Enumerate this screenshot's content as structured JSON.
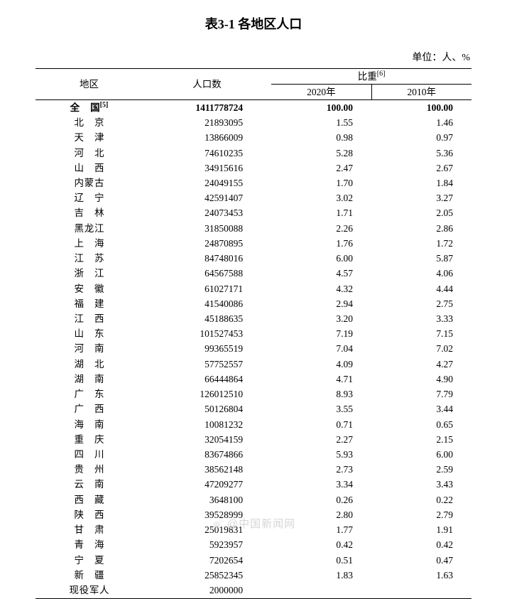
{
  "title": "表3-1 各地区人口",
  "unit_label": "单位：人、%",
  "headers": {
    "region": "地区",
    "population": "人口数",
    "ratio_group": "比重",
    "ratio_group_sup": "[6]",
    "year_2020": "2020年",
    "year_2010": "2010年"
  },
  "total_row": {
    "region_html": "全　国",
    "region_sup": "[5]",
    "population": "1411778724",
    "r2020": "100.00",
    "r2010": "100.00"
  },
  "rows": [
    {
      "region": "北　京",
      "population": "21893095",
      "r2020": "1.55",
      "r2010": "1.46"
    },
    {
      "region": "天　津",
      "population": "13866009",
      "r2020": "0.98",
      "r2010": "0.97"
    },
    {
      "region": "河　北",
      "population": "74610235",
      "r2020": "5.28",
      "r2010": "5.36"
    },
    {
      "region": "山　西",
      "population": "34915616",
      "r2020": "2.47",
      "r2010": "2.67"
    },
    {
      "region": "内蒙古",
      "population": "24049155",
      "r2020": "1.70",
      "r2010": "1.84"
    },
    {
      "region": "辽　宁",
      "population": "42591407",
      "r2020": "3.02",
      "r2010": "3.27"
    },
    {
      "region": "吉　林",
      "population": "24073453",
      "r2020": "1.71",
      "r2010": "2.05"
    },
    {
      "region": "黑龙江",
      "population": "31850088",
      "r2020": "2.26",
      "r2010": "2.86"
    },
    {
      "region": "上　海",
      "population": "24870895",
      "r2020": "1.76",
      "r2010": "1.72"
    },
    {
      "region": "江　苏",
      "population": "84748016",
      "r2020": "6.00",
      "r2010": "5.87"
    },
    {
      "region": "浙　江",
      "population": "64567588",
      "r2020": "4.57",
      "r2010": "4.06"
    },
    {
      "region": "安　徽",
      "population": "61027171",
      "r2020": "4.32",
      "r2010": "4.44"
    },
    {
      "region": "福　建",
      "population": "41540086",
      "r2020": "2.94",
      "r2010": "2.75"
    },
    {
      "region": "江　西",
      "population": "45188635",
      "r2020": "3.20",
      "r2010": "3.33"
    },
    {
      "region": "山　东",
      "population": "101527453",
      "r2020": "7.19",
      "r2010": "7.15"
    },
    {
      "region": "河　南",
      "population": "99365519",
      "r2020": "7.04",
      "r2010": "7.02"
    },
    {
      "region": "湖　北",
      "population": "57752557",
      "r2020": "4.09",
      "r2010": "4.27"
    },
    {
      "region": "湖　南",
      "population": "66444864",
      "r2020": "4.71",
      "r2010": "4.90"
    },
    {
      "region": "广　东",
      "population": "126012510",
      "r2020": "8.93",
      "r2010": "7.79"
    },
    {
      "region": "广　西",
      "population": "50126804",
      "r2020": "3.55",
      "r2010": "3.44"
    },
    {
      "region": "海　南",
      "population": "10081232",
      "r2020": "0.71",
      "r2010": "0.65"
    },
    {
      "region": "重　庆",
      "population": "32054159",
      "r2020": "2.27",
      "r2010": "2.15"
    },
    {
      "region": "四　川",
      "population": "83674866",
      "r2020": "5.93",
      "r2010": "6.00"
    },
    {
      "region": "贵　州",
      "population": "38562148",
      "r2020": "2.73",
      "r2010": "2.59"
    },
    {
      "region": "云　南",
      "population": "47209277",
      "r2020": "3.34",
      "r2010": "3.43"
    },
    {
      "region": "西　藏",
      "population": "3648100",
      "r2020": "0.26",
      "r2010": "0.22"
    },
    {
      "region": "陕　西",
      "population": "39528999",
      "r2020": "2.80",
      "r2010": "2.79"
    },
    {
      "region": "甘　肃",
      "population": "25019831",
      "r2020": "1.77",
      "r2010": "1.91"
    },
    {
      "region": "青　海",
      "population": "5923957",
      "r2020": "0.42",
      "r2010": "0.42"
    },
    {
      "region": "宁　夏",
      "population": "7202654",
      "r2020": "0.51",
      "r2010": "0.47"
    },
    {
      "region": "新　疆",
      "population": "25852345",
      "r2020": "1.83",
      "r2010": "1.63"
    },
    {
      "region": "现役军人",
      "population": "2000000",
      "r2020": "",
      "r2010": ""
    }
  ],
  "watermark_text": "@中国新闻网",
  "style": {
    "region_inner_width_2": "42px",
    "region_inner_width_3": "42px",
    "region_inner_width_4": "56px"
  }
}
